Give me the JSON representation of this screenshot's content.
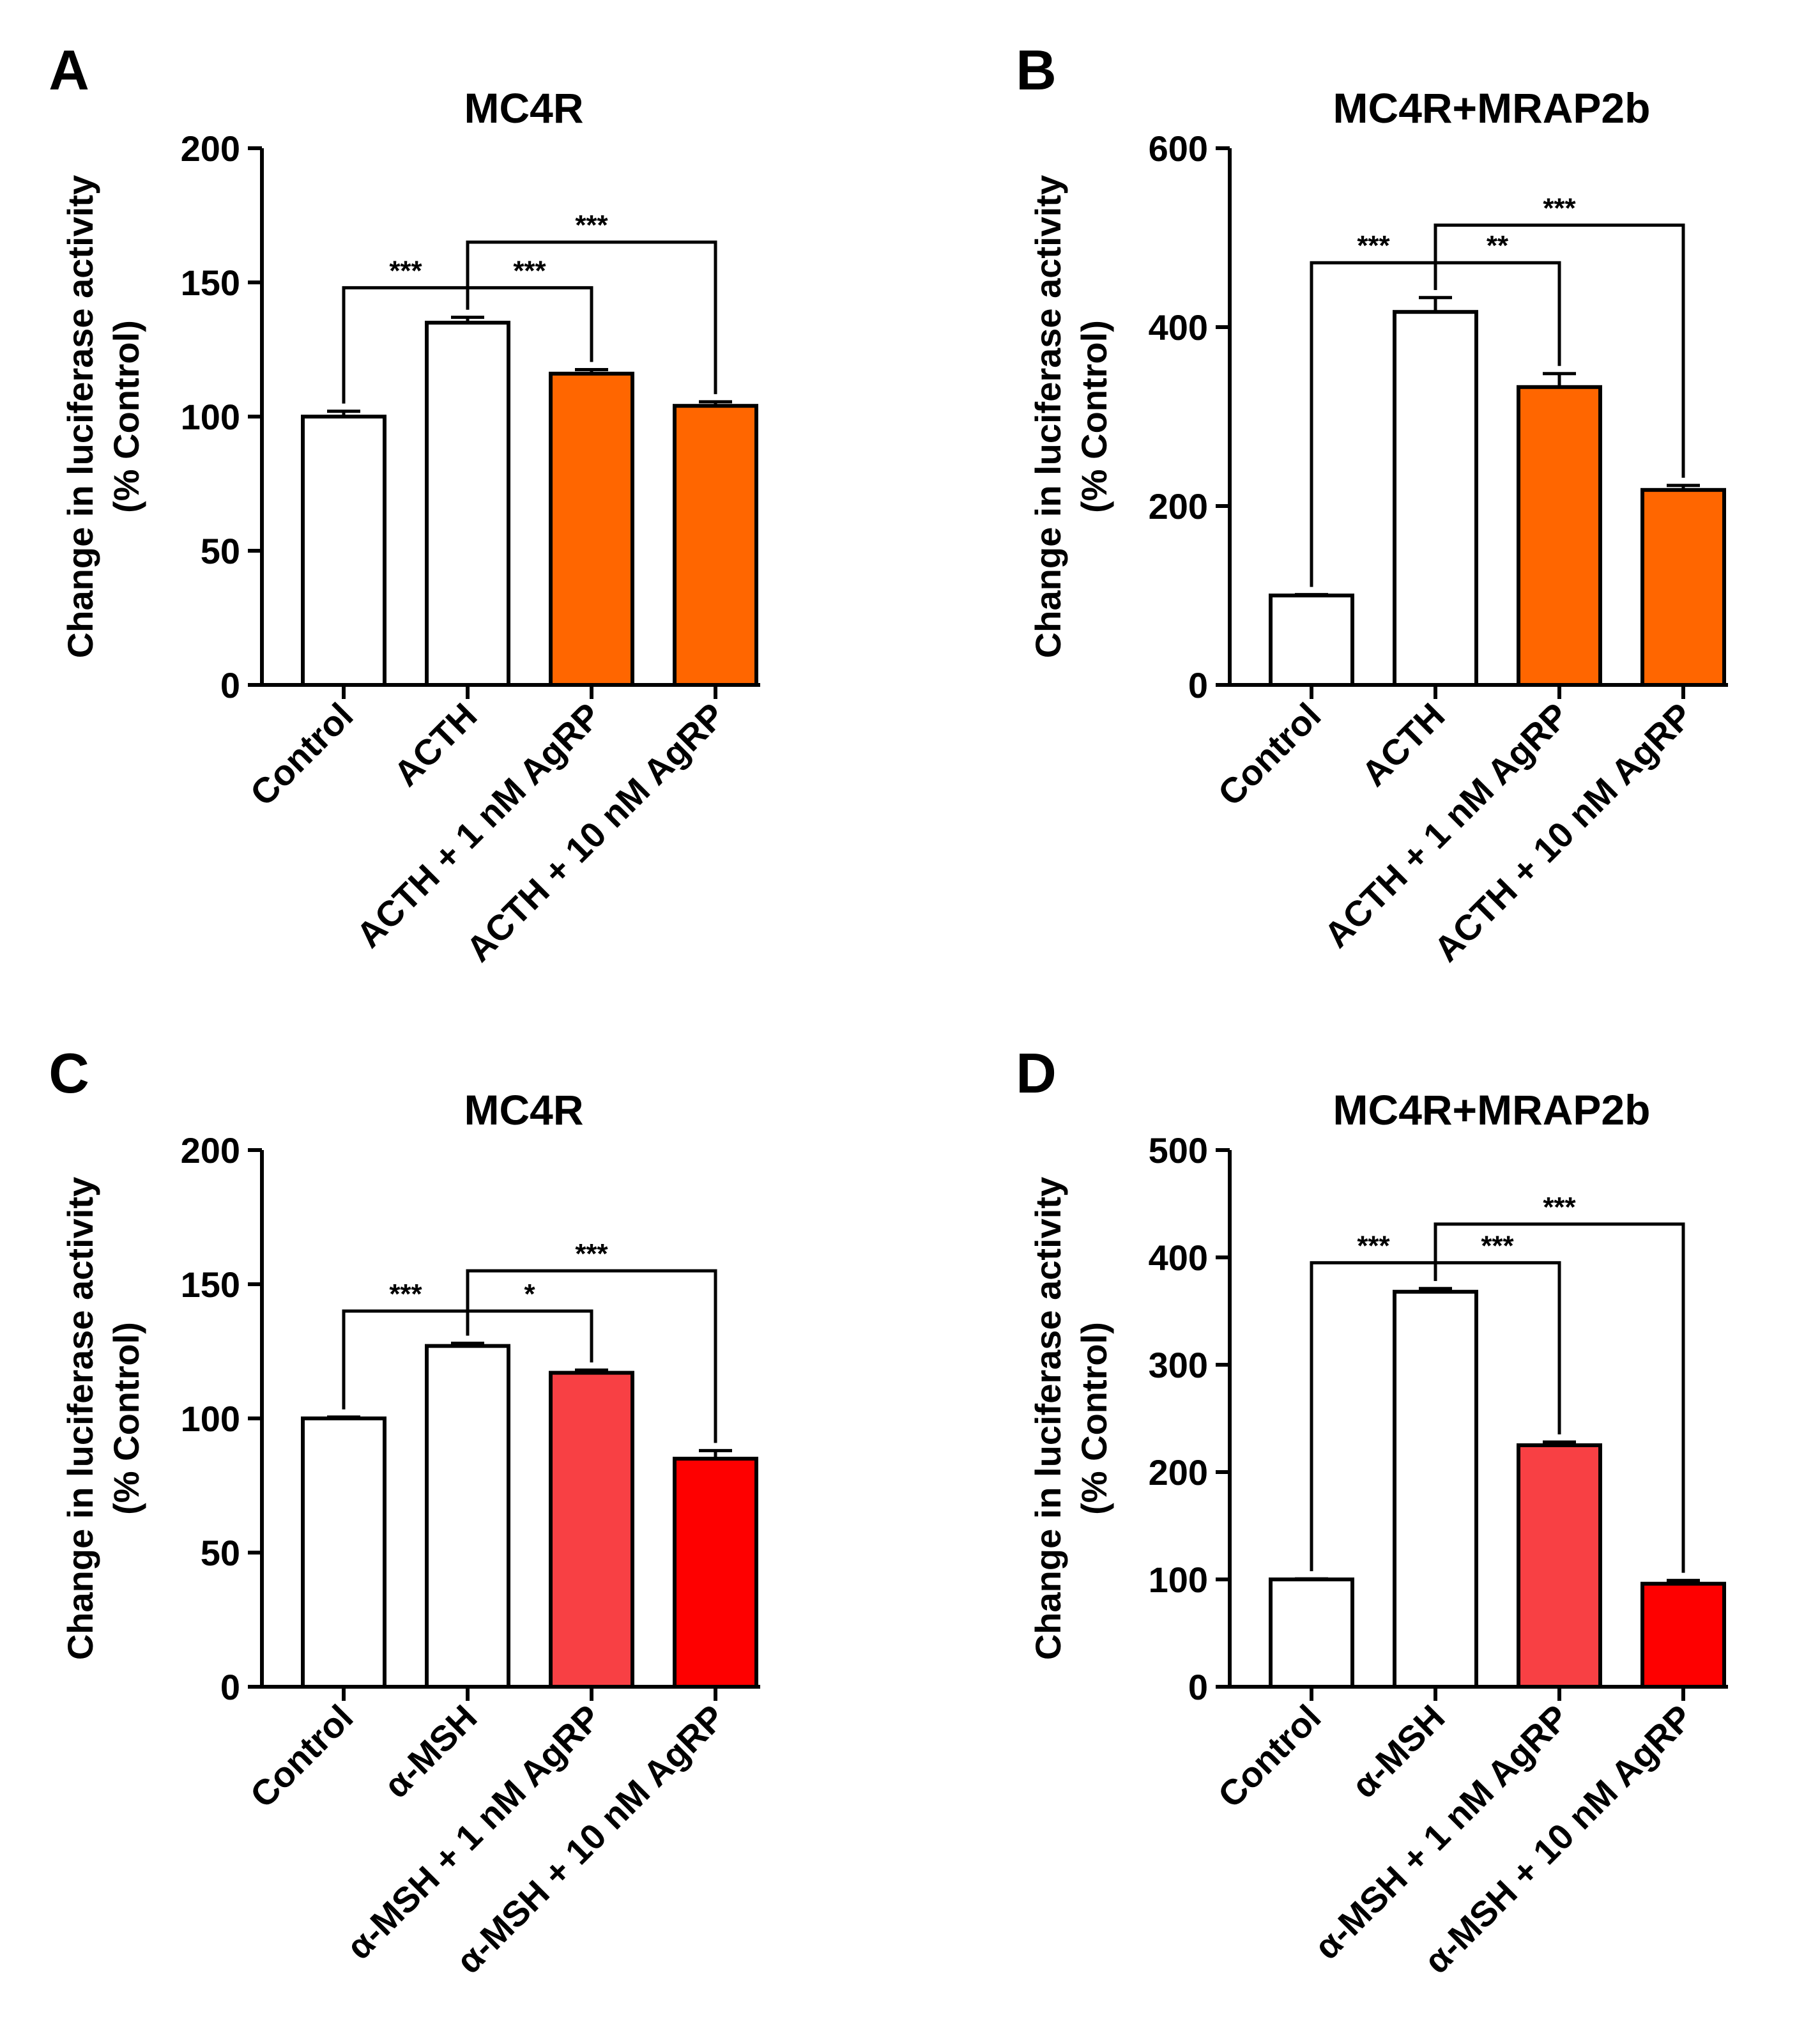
{
  "chart_data": [
    {
      "panel": "A",
      "type": "bar",
      "title": "MC4R",
      "ylabel_line1": "Change in luciferase activity",
      "ylabel_line2": "(% Control)",
      "xlabel": "",
      "ylim": [
        0,
        200
      ],
      "yticks": [
        0,
        50,
        100,
        150,
        200
      ],
      "categories": [
        "Control",
        "ACTH",
        "ACTH + 1 nM AgRP",
        "ACTH + 10 nM AgRP"
      ],
      "values": [
        100,
        135,
        116,
        104
      ],
      "errors": [
        2,
        2,
        1.5,
        1.5
      ],
      "colors": [
        "#ffffff",
        "#ffffff",
        "#ff6600",
        "#ff6600"
      ],
      "significance": [
        {
          "from": 0,
          "to": 1,
          "label": "***",
          "y": 148
        },
        {
          "from": 1,
          "to": 2,
          "label": "***",
          "y": 148
        },
        {
          "from": 1,
          "to": 3,
          "label": "***",
          "y": 165
        }
      ]
    },
    {
      "panel": "B",
      "type": "bar",
      "title": "MC4R+MRAP2b",
      "ylabel_line1": "Change in luciferase activity",
      "ylabel_line2": "(% Control)",
      "xlabel": "",
      "ylim": [
        0,
        600
      ],
      "yticks": [
        0,
        200,
        400,
        600
      ],
      "categories": [
        "Control",
        "ACTH",
        "ACTH + 1 nM AgRP",
        "ACTH + 10 nM AgRP"
      ],
      "values": [
        100,
        417,
        333,
        218
      ],
      "errors": [
        1,
        16,
        15,
        5
      ],
      "colors": [
        "#ffffff",
        "#ffffff",
        "#ff6600",
        "#ff6600"
      ],
      "significance": [
        {
          "from": 0,
          "to": 1,
          "label": "***",
          "y": 472
        },
        {
          "from": 1,
          "to": 2,
          "label": "**",
          "y": 472
        },
        {
          "from": 1,
          "to": 3,
          "label": "***",
          "y": 514
        }
      ]
    },
    {
      "panel": "C",
      "type": "bar",
      "title": "MC4R",
      "ylabel_line1": "Change in luciferase activity",
      "ylabel_line2": "(% Control)",
      "xlabel": "",
      "ylim": [
        0,
        200
      ],
      "yticks": [
        0,
        50,
        100,
        150,
        200
      ],
      "categories": [
        "Control",
        "α-MSH",
        "α-MSH + 1 nM AgRP",
        "α-MSH + 10 nM AgRP"
      ],
      "values": [
        100,
        127,
        117,
        85
      ],
      "errors": [
        0.5,
        1,
        1,
        3
      ],
      "colors": [
        "#ffffff",
        "#ffffff",
        "#f84044",
        "#fe0000"
      ],
      "significance": [
        {
          "from": 0,
          "to": 1,
          "label": "***",
          "y": 140
        },
        {
          "from": 1,
          "to": 2,
          "label": "*",
          "y": 140
        },
        {
          "from": 1,
          "to": 3,
          "label": "***",
          "y": 155
        }
      ]
    },
    {
      "panel": "D",
      "type": "bar",
      "title": "MC4R+MRAP2b",
      "ylabel_line1": "Change in luciferase activity",
      "ylabel_line2": "(% Control)",
      "xlabel": "",
      "ylim": [
        0,
        500
      ],
      "yticks": [
        0,
        100,
        200,
        300,
        400,
        500
      ],
      "categories": [
        "Control",
        "α-MSH",
        "α-MSH + 1 nM AgRP",
        "α-MSH + 10 nM AgRP"
      ],
      "values": [
        100,
        368,
        225,
        96
      ],
      "errors": [
        0.5,
        3,
        3,
        3
      ],
      "colors": [
        "#ffffff",
        "#ffffff",
        "#f84044",
        "#fe0000"
      ],
      "significance": [
        {
          "from": 0,
          "to": 1,
          "label": "***",
          "y": 395
        },
        {
          "from": 1,
          "to": 2,
          "label": "***",
          "y": 395
        },
        {
          "from": 1,
          "to": 3,
          "label": "***",
          "y": 431
        }
      ]
    }
  ]
}
